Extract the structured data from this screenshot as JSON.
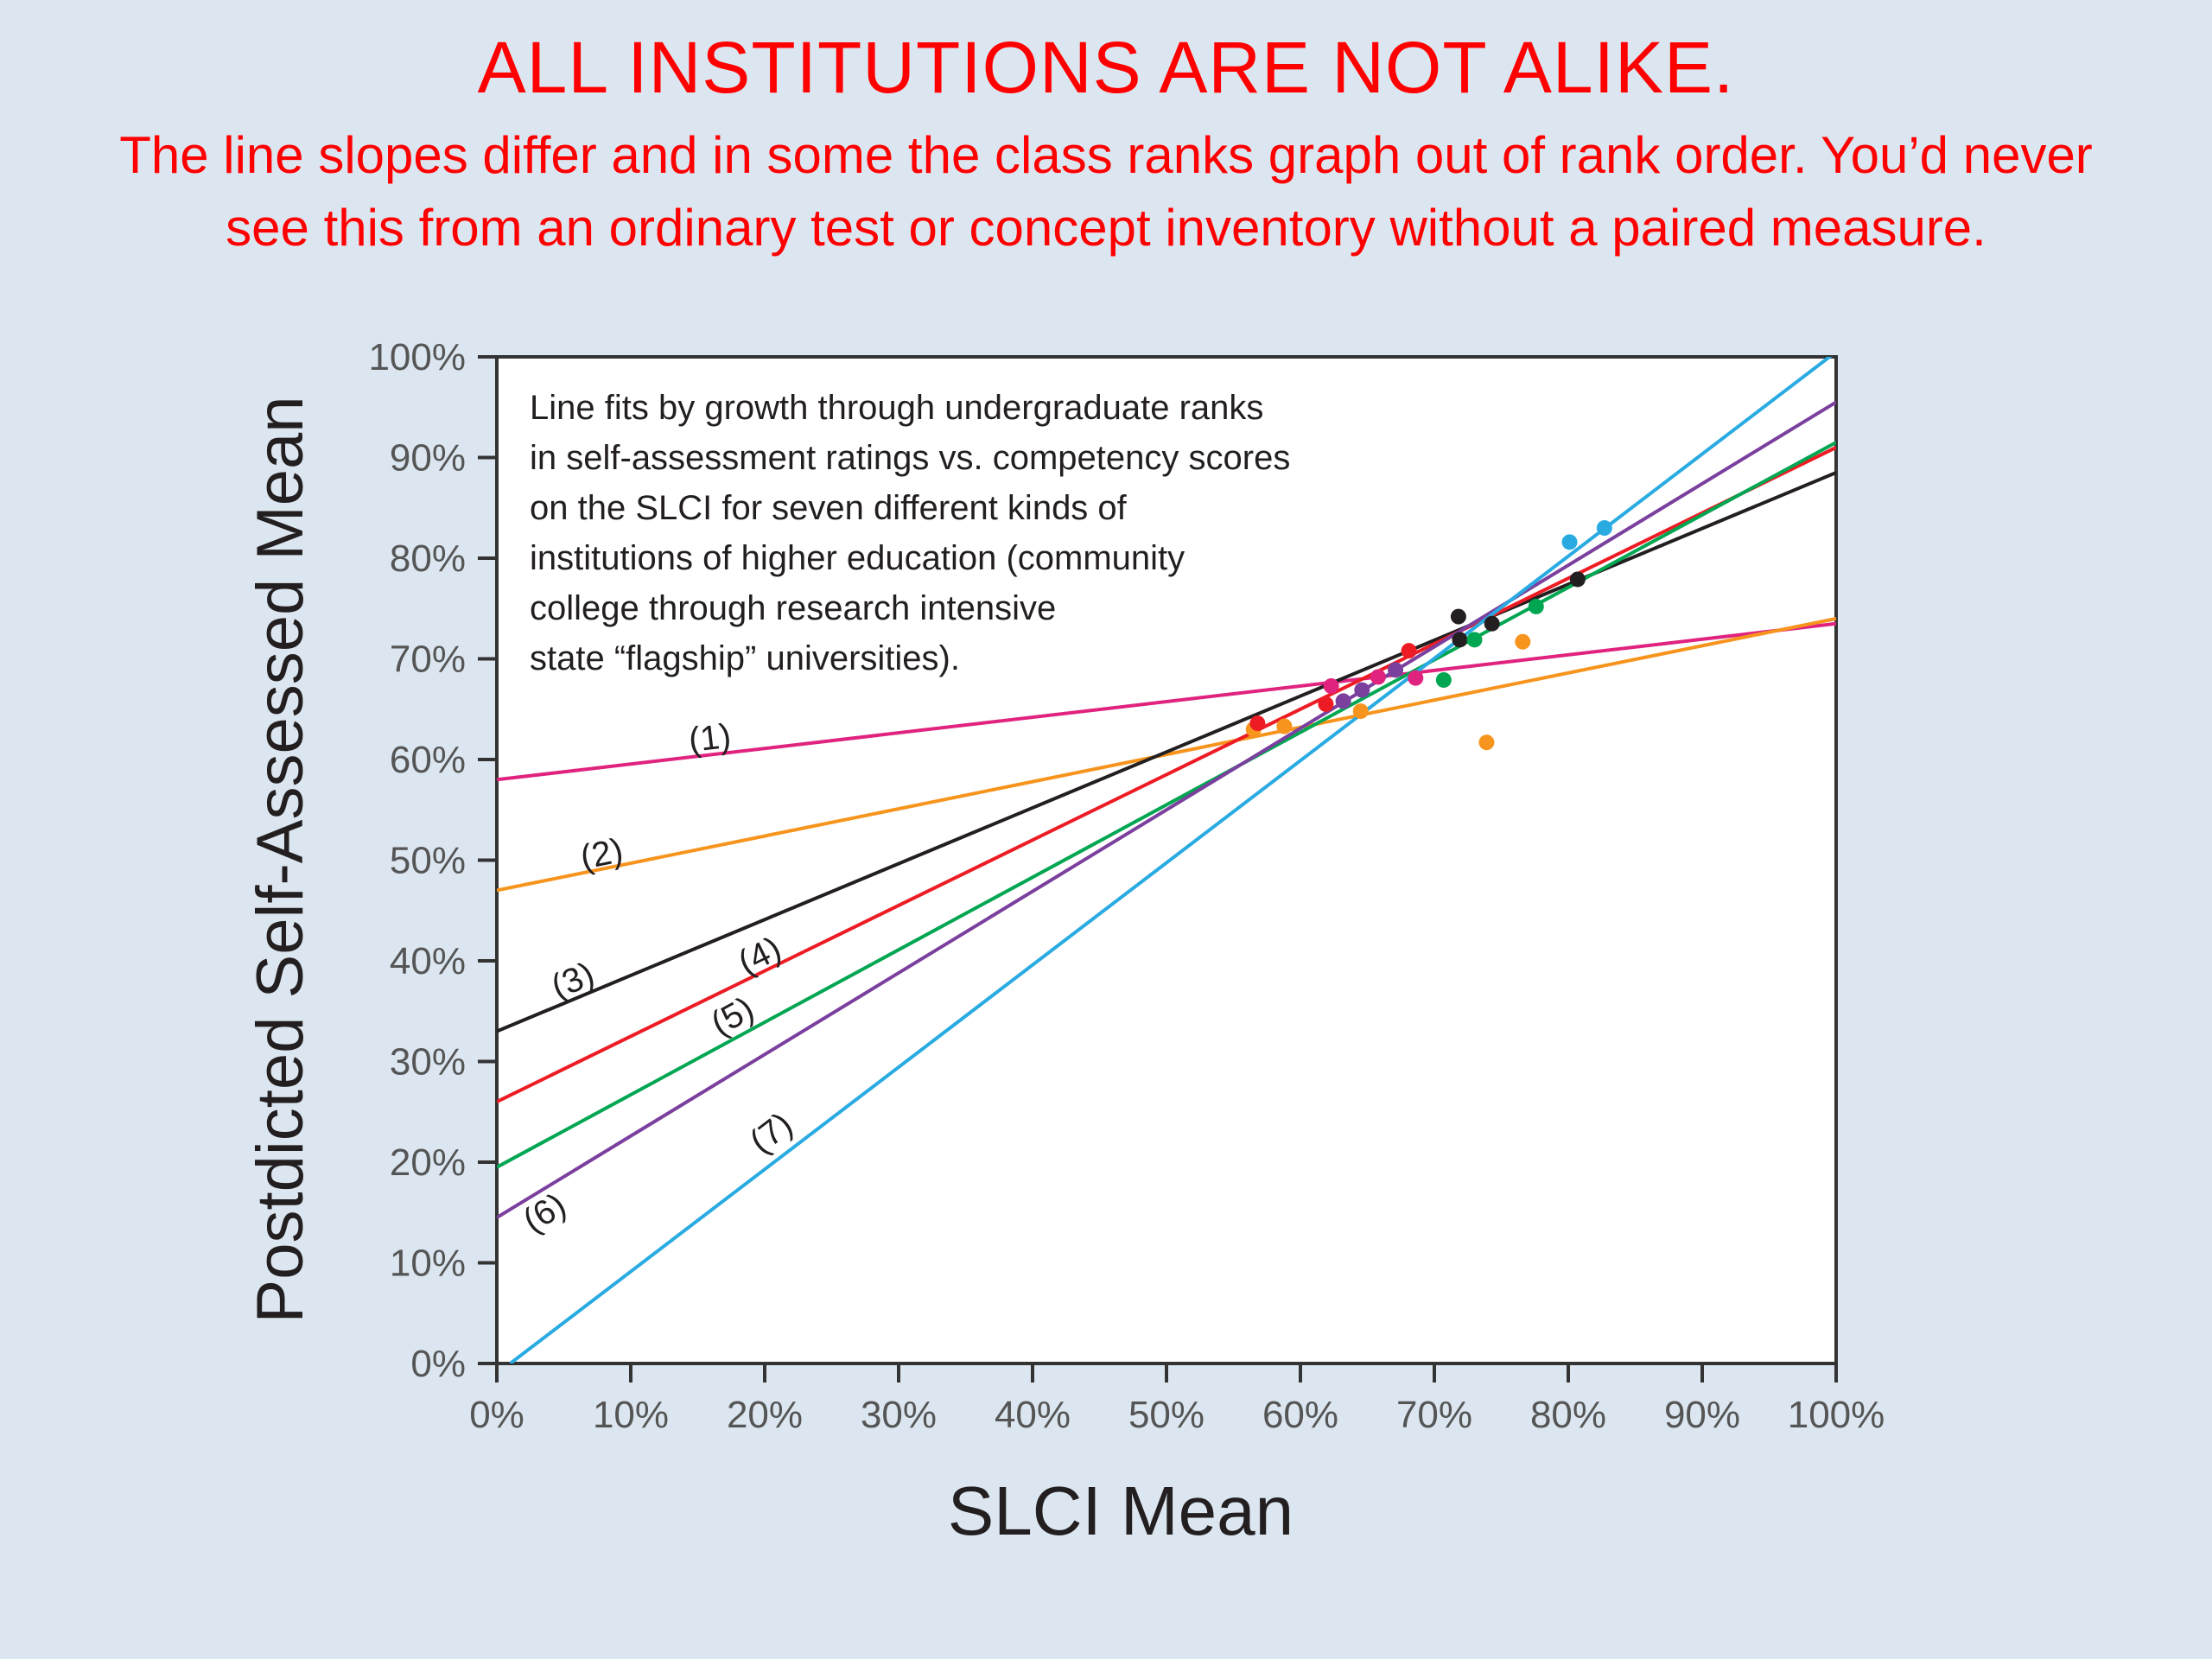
{
  "slide": {
    "title": "ALL INSTITUTIONS ARE NOT ALIKE.",
    "subtitle_line1": "The line slopes differ and in some the class ranks graph out of rank order. You’d never",
    "subtitle_line2": "see this from an ordinary test or concept inventory without a paired measure."
  },
  "chart_data": {
    "type": "scatter",
    "xlabel": "SLCI Mean",
    "ylabel": "Postdicted Self-Assessed Mean",
    "xlim": [
      0,
      100
    ],
    "ylim": [
      0,
      100
    ],
    "x_ticks": [
      "0%",
      "10%",
      "20%",
      "30%",
      "40%",
      "50%",
      "60%",
      "70%",
      "80%",
      "90%",
      "100%"
    ],
    "y_ticks": [
      "0%",
      "10%",
      "20%",
      "30%",
      "40%",
      "50%",
      "60%",
      "70%",
      "80%",
      "90%",
      "100%"
    ],
    "grid": false,
    "annotation": [
      "Line fits by growth through undergraduate ranks",
      "in self-assessment ratings vs. competency scores",
      "on the SLCI for seven different kinds of",
      "institutions of higher education (community",
      "college through research intensive",
      "state “flagship” universities)."
    ],
    "lines": [
      {
        "label": "(1)",
        "color": "#e0237f",
        "x": [
          0,
          100
        ],
        "y": [
          58,
          73.5
        ],
        "label_at": [
          16,
          61
        ]
      },
      {
        "label": "(2)",
        "color": "#f7941d",
        "x": [
          0,
          100
        ],
        "y": [
          47,
          74
        ],
        "label_at": [
          8,
          49.5
        ]
      },
      {
        "label": "(3)",
        "color": "#231f20",
        "x": [
          0,
          100
        ],
        "y": [
          33,
          88.5
        ],
        "label_at": [
          6,
          37
        ]
      },
      {
        "label": "(4)",
        "color": "#ed1c24",
        "x": [
          0,
          100
        ],
        "y": [
          26,
          91
        ],
        "label_at": [
          20,
          39.5
        ]
      },
      {
        "label": "(5)",
        "color": "#00a651",
        "x": [
          0,
          100
        ],
        "y": [
          19.5,
          91.5
        ],
        "label_at": [
          18,
          33.5
        ]
      },
      {
        "label": "(6)",
        "color": "#7b3f9e",
        "x": [
          0,
          100
        ],
        "y": [
          14.5,
          95.5
        ],
        "label_at": [
          4,
          14
        ]
      },
      {
        "label": "(7)",
        "color": "#29abe2",
        "x": [
          1,
          100
        ],
        "y": [
          0,
          100.5
        ],
        "label_at": [
          21,
          22
        ]
      }
    ],
    "points": [
      {
        "color": "#e0237f",
        "x": 62.3,
        "y": 67.3
      },
      {
        "color": "#e0237f",
        "x": 65.8,
        "y": 68.2
      },
      {
        "color": "#e0237f",
        "x": 68.6,
        "y": 68.1
      },
      {
        "color": "#f7941d",
        "x": 56.5,
        "y": 63.0
      },
      {
        "color": "#f7941d",
        "x": 58.8,
        "y": 63.3
      },
      {
        "color": "#f7941d",
        "x": 64.5,
        "y": 64.8
      },
      {
        "color": "#f7941d",
        "x": 73.9,
        "y": 61.7
      },
      {
        "color": "#f7941d",
        "x": 76.6,
        "y": 71.7
      },
      {
        "color": "#231f20",
        "x": 71.8,
        "y": 74.2
      },
      {
        "color": "#231f20",
        "x": 71.9,
        "y": 71.9
      },
      {
        "color": "#231f20",
        "x": 74.3,
        "y": 73.5
      },
      {
        "color": "#231f20",
        "x": 80.7,
        "y": 77.9
      },
      {
        "color": "#ed1c24",
        "x": 56.8,
        "y": 63.6
      },
      {
        "color": "#ed1c24",
        "x": 61.9,
        "y": 65.5
      },
      {
        "color": "#ed1c24",
        "x": 68.1,
        "y": 70.8
      },
      {
        "color": "#00a651",
        "x": 70.7,
        "y": 67.9
      },
      {
        "color": "#00a651",
        "x": 73.0,
        "y": 71.9
      },
      {
        "color": "#00a651",
        "x": 77.6,
        "y": 75.2
      },
      {
        "color": "#7b3f9e",
        "x": 63.2,
        "y": 65.8
      },
      {
        "color": "#7b3f9e",
        "x": 64.6,
        "y": 66.9
      },
      {
        "color": "#7b3f9e",
        "x": 67.1,
        "y": 68.9
      },
      {
        "color": "#29abe2",
        "x": 80.1,
        "y": 81.6
      },
      {
        "color": "#29abe2",
        "x": 82.7,
        "y": 83.0
      }
    ]
  }
}
